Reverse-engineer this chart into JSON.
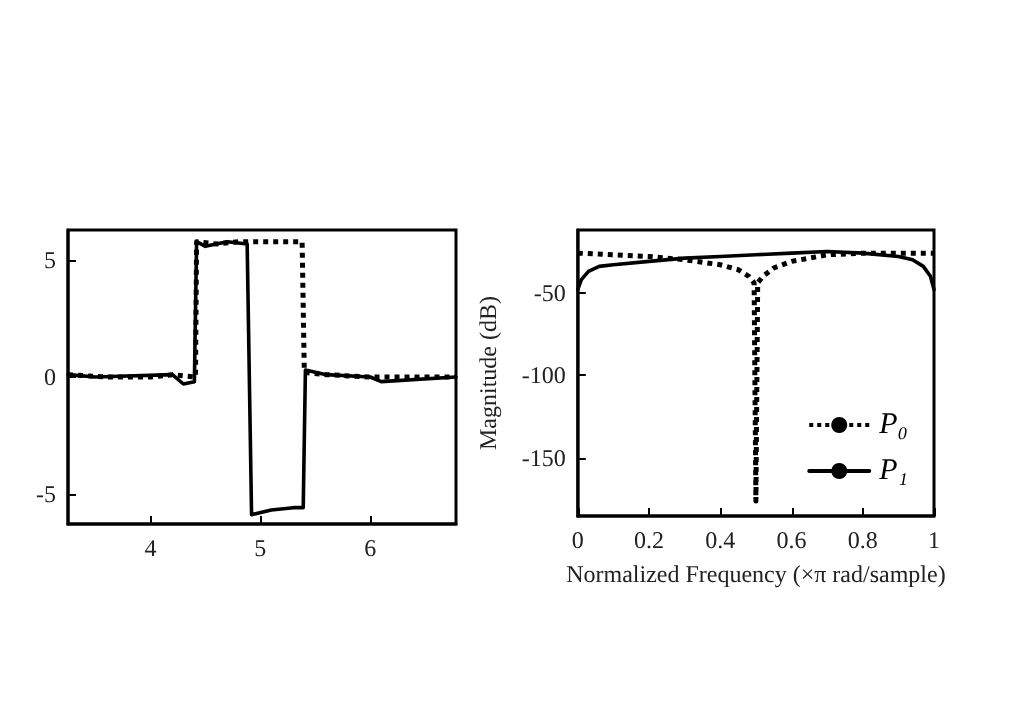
{
  "chart_data": [
    {
      "type": "line",
      "xlim": [
        3.25,
        6.78
      ],
      "ylim": [
        -6.3,
        6.3
      ],
      "xticks": [
        4,
        5,
        6
      ],
      "yticks": [
        -5,
        0,
        5
      ],
      "grid": false,
      "legend": false,
      "marker": "none",
      "series": [
        {
          "color": "#000000",
          "line_style": "dotted",
          "x": [
            3.25,
            3.6,
            4.0,
            4.2,
            4.41,
            4.42,
            4.6,
            4.8,
            5.0,
            5.2,
            5.38,
            5.4,
            5.6,
            6.0,
            6.4,
            6.78
          ],
          "values": [
            0.1,
            0,
            0,
            0.1,
            0,
            5.8,
            5.7,
            5.8,
            5.8,
            5.8,
            5.8,
            0.2,
            0.1,
            0,
            0,
            0
          ]
        },
        {
          "color": "#000000",
          "line_style": "solid",
          "x": [
            3.25,
            3.5,
            4.2,
            4.3,
            4.4,
            4.42,
            4.5,
            4.7,
            4.88,
            4.92,
            5.1,
            5.3,
            5.39,
            5.41,
            5.6,
            6.0,
            6.1,
            6.78
          ],
          "values": [
            0.1,
            0,
            0.1,
            -0.3,
            -0.2,
            5.8,
            5.6,
            5.8,
            5.7,
            -5.9,
            -5.7,
            -5.6,
            -5.6,
            0.3,
            0.1,
            0,
            -0.2,
            0
          ]
        }
      ]
    },
    {
      "type": "line",
      "xlabel": "Normalized Frequency (×π rad/sample)",
      "ylabel": "Magnitude (dB)",
      "xlim": [
        0,
        1
      ],
      "ylim": [
        -185,
        -12
      ],
      "xticks": [
        0,
        0.2,
        0.4,
        0.6,
        0.8,
        1
      ],
      "yticks": [
        -50,
        -100,
        -150
      ],
      "grid": false,
      "legend": "bottom right",
      "marker": "none",
      "series": [
        {
          "name": "P₀",
          "color": "#000000",
          "line_style": "dotted",
          "x": [
            0,
            0.1,
            0.2,
            0.3,
            0.4,
            0.45,
            0.48,
            0.495,
            0.5,
            0.505,
            0.52,
            0.55,
            0.6,
            0.7,
            0.8,
            0.9,
            1
          ],
          "values": [
            -26,
            -27,
            -28,
            -30,
            -33,
            -36,
            -40,
            -44,
            -176,
            -44,
            -40,
            -35,
            -31,
            -27,
            -26,
            -26,
            -26
          ]
        },
        {
          "name": "P₁",
          "color": "#000000",
          "line_style": "solid",
          "x": [
            0,
            0.01,
            0.03,
            0.06,
            0.1,
            0.2,
            0.3,
            0.4,
            0.5,
            0.6,
            0.7,
            0.8,
            0.9,
            0.94,
            0.97,
            0.99,
            1
          ],
          "values": [
            -48,
            -42,
            -37,
            -34,
            -33,
            -31,
            -29,
            -28,
            -27,
            -26,
            -25,
            -26,
            -28,
            -30,
            -34,
            -40,
            -48
          ]
        }
      ]
    }
  ]
}
